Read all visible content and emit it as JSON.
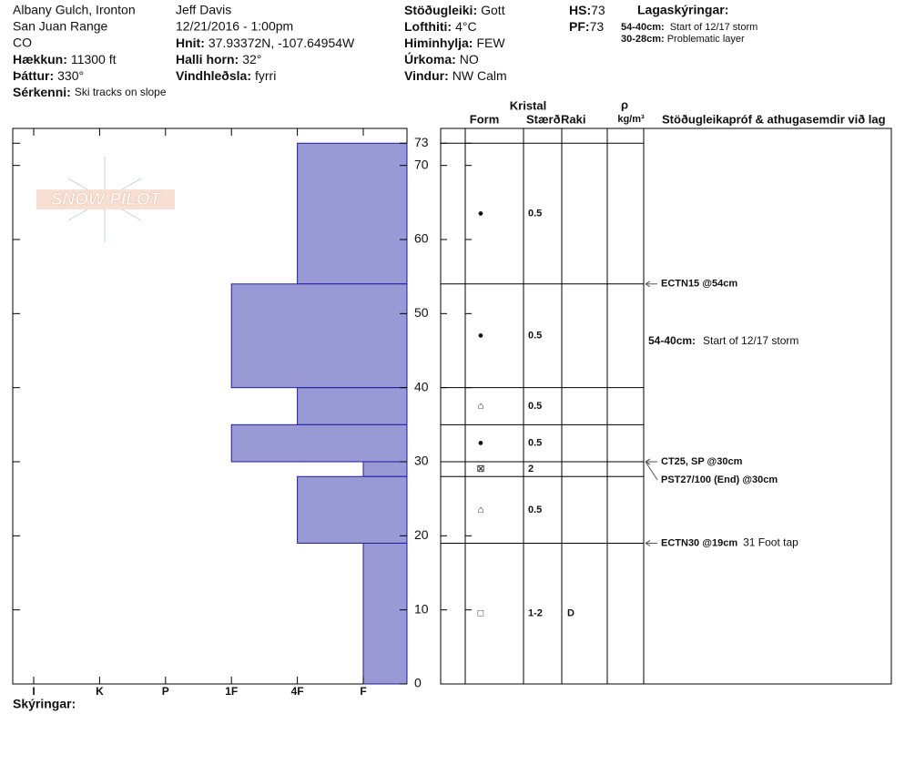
{
  "header": {
    "location": "Albany Gulch, Ironton",
    "range": "San Juan Range",
    "state": "CO",
    "elevation": {
      "label": "Hækkun:",
      "value": "11300 ft"
    },
    "aspect": {
      "label": "Þáttur:",
      "value": "330°"
    },
    "features": {
      "label": "Sérkenni:",
      "value": "Ski tracks on slope"
    },
    "observer": "Jeff Davis",
    "datetime": "12/21/2016 - 1:00pm",
    "coords": {
      "label": "Hnit:",
      "value": "37.93372N, -107.64954W"
    },
    "slope": {
      "label": "Halli horn:",
      "value": "32°"
    },
    "wind_loading": {
      "label": "Vindhleðsla:",
      "value": "fyrri"
    },
    "stability": {
      "label": "Stöðugleiki:",
      "value": "Gott"
    },
    "air_temp": {
      "label": "Lofthiti:",
      "value": "4°C"
    },
    "sky": {
      "label": "Himinhylja:",
      "value": "FEW"
    },
    "precip": {
      "label": "Úrkoma:",
      "value": "NO"
    },
    "wind": {
      "label": "Vindur:",
      "value": "NW Calm"
    },
    "hs": {
      "label": "HS:",
      "value": "73"
    },
    "pf": {
      "label": "PF:",
      "value": "73"
    },
    "layer_notes_title": "Lagaskýringar:",
    "layer_notes": [
      {
        "label": "54-40cm:",
        "text": "Start of 12/17 storm"
      },
      {
        "label": "30-28cm:",
        "text": "Problematic layer"
      }
    ],
    "logo": "SNOW PILOT"
  },
  "chart_data": {
    "type": "snow-profile",
    "ylim": [
      0,
      75
    ],
    "yticks": [
      0,
      10,
      20,
      30,
      40,
      50,
      60,
      70,
      73
    ],
    "hardness_ticks": [
      "I",
      "K",
      "P",
      "1F",
      "4F",
      "F"
    ],
    "columns": {
      "crystal": "Kristal",
      "form": "Form",
      "size": "Stærð",
      "moisture": "Raki",
      "rho": "ρ",
      "density": "kg/m³",
      "tests": "Stöðugleikapróf & athugasemdir við lag"
    },
    "layers": [
      {
        "top": 73,
        "bottom": 54,
        "hardness": "4F",
        "form": "●",
        "size": "0.5",
        "moisture": null
      },
      {
        "top": 54,
        "bottom": 40,
        "hardness": "1F",
        "form": "●",
        "size": "0.5",
        "moisture": null
      },
      {
        "top": 40,
        "bottom": 35,
        "hardness": "4F",
        "form": "⌂",
        "size": "0.5",
        "moisture": null
      },
      {
        "top": 35,
        "bottom": 30,
        "hardness": "1F",
        "form": "●",
        "size": "0.5",
        "moisture": null
      },
      {
        "top": 30,
        "bottom": 28,
        "hardness": "F",
        "form": "⊠",
        "size": "2",
        "moisture": null
      },
      {
        "top": 28,
        "bottom": 19,
        "hardness": "4F",
        "form": "⌂",
        "size": "0.5",
        "moisture": null
      },
      {
        "top": 19,
        "bottom": 0,
        "hardness": "F",
        "form": "□",
        "size": "1-2",
        "moisture": "D"
      }
    ],
    "tests": [
      {
        "depth": 54,
        "label": "ECTN15 @54cm",
        "note": null
      },
      {
        "depth": 30,
        "label": "CT25, SP @30cm",
        "note": null
      },
      {
        "depth": 30,
        "label": "PST27/100 (End) @30cm",
        "note": null
      },
      {
        "depth": 19,
        "label": "ECTN30 @19cm",
        "note": "31 Foot tap"
      }
    ],
    "comments": [
      {
        "top": 54,
        "bottom": 40,
        "label": "54-40cm:",
        "text": "Start of 12/17 storm"
      }
    ],
    "footer": "Skýringar:"
  }
}
